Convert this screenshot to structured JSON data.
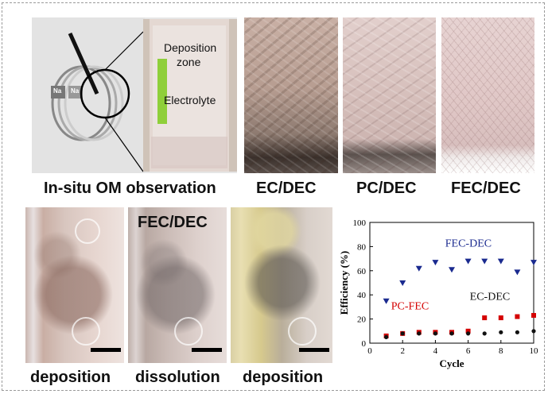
{
  "schematic": {
    "deposition_zone": "Deposition\nzone",
    "deposition_line1": "Deposition",
    "deposition_line2": "zone",
    "electrolyte": "Electrolyte",
    "na_left": "Na",
    "na_right": "Na"
  },
  "top_labels": {
    "insitu": "In-situ OM observation",
    "ec_dec": "EC/DEC",
    "pc_dec": "PC/DEC",
    "fec_dec": "FEC/DEC"
  },
  "bottom_labels": {
    "overlay": "FEC/DEC",
    "deposition1": "deposition",
    "dissolution": "dissolution",
    "deposition2": "deposition"
  },
  "chart_data": {
    "type": "scatter",
    "xlabel": "Cycle",
    "ylabel": "Efficiency (%)",
    "xlim": [
      0,
      10
    ],
    "ylim": [
      0,
      100
    ],
    "xticks": [
      0,
      2,
      4,
      6,
      8,
      10
    ],
    "yticks": [
      0,
      20,
      40,
      60,
      80,
      100
    ],
    "series": [
      {
        "name": "FEC-DEC",
        "color": "#1a2a8f",
        "marker": "triangle-down",
        "x": [
          1,
          2,
          3,
          4,
          5,
          6,
          7,
          8,
          9,
          10
        ],
        "y": [
          35,
          50,
          62,
          67,
          61,
          68,
          68,
          68,
          59,
          67
        ]
      },
      {
        "name": "PC-FEC",
        "color": "#d40000",
        "marker": "square",
        "x": [
          1,
          2,
          3,
          4,
          5,
          6,
          7,
          8,
          9,
          10
        ],
        "y": [
          6,
          8,
          9,
          9,
          9,
          10,
          21,
          21,
          22,
          23
        ]
      },
      {
        "name": "EC-DEC",
        "color": "#111111",
        "marker": "circle",
        "x": [
          1,
          2,
          3,
          4,
          5,
          6,
          7,
          8,
          9,
          10
        ],
        "y": [
          5,
          8,
          8,
          8,
          8,
          8,
          8,
          9,
          9,
          10
        ]
      }
    ],
    "annotations": [
      "FEC-DEC",
      "PC-FEC",
      "EC-DEC"
    ]
  }
}
